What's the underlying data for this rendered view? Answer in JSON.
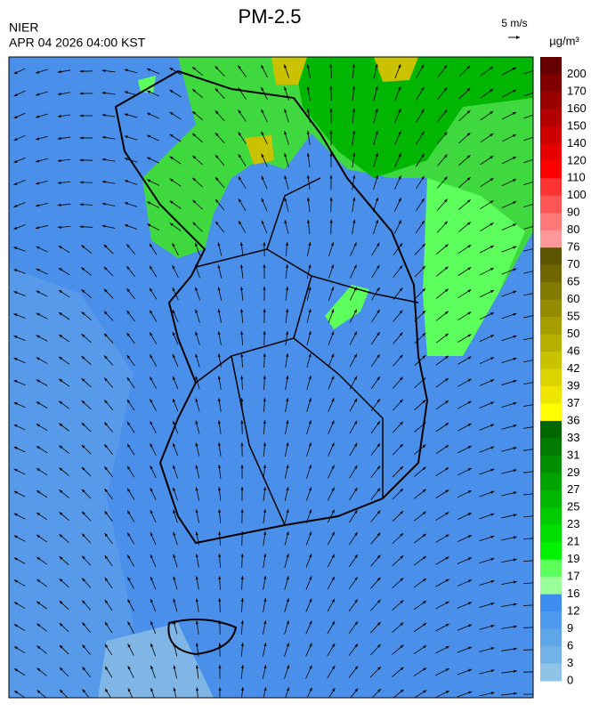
{
  "header": {
    "title": "PM-2.5",
    "agency": "NIER",
    "timestamp": "APR 04 2026 04:00 KST"
  },
  "wind_scale": {
    "label": "5 m/s"
  },
  "colorbar": {
    "unit": "µg/m³",
    "levels": [
      200,
      170,
      160,
      150,
      140,
      120,
      110,
      100,
      90,
      80,
      76,
      70,
      65,
      60,
      55,
      50,
      46,
      42,
      39,
      37,
      36,
      33,
      31,
      29,
      27,
      25,
      23,
      21,
      19,
      17,
      16,
      12,
      9,
      6,
      3,
      0
    ],
    "colors": [
      "#660000",
      "#800000",
      "#990000",
      "#b30000",
      "#cc0000",
      "#e60000",
      "#ff0000",
      "#ff3333",
      "#ff5555",
      "#ff7777",
      "#ff9999",
      "#5e5500",
      "#6f6600",
      "#827a00",
      "#948c00",
      "#a69e00",
      "#b8b000",
      "#cac200",
      "#dcd400",
      "#eee600",
      "#ffff00",
      "#006600",
      "#007a00",
      "#008e00",
      "#00a200",
      "#00b600",
      "#00ca00",
      "#00de00",
      "#00f200",
      "#5cff5c",
      "#99ff99",
      "#3d8ef0",
      "#4d9aec",
      "#5fa6e8",
      "#72b2e6",
      "#8fc4e6"
    ]
  }
}
